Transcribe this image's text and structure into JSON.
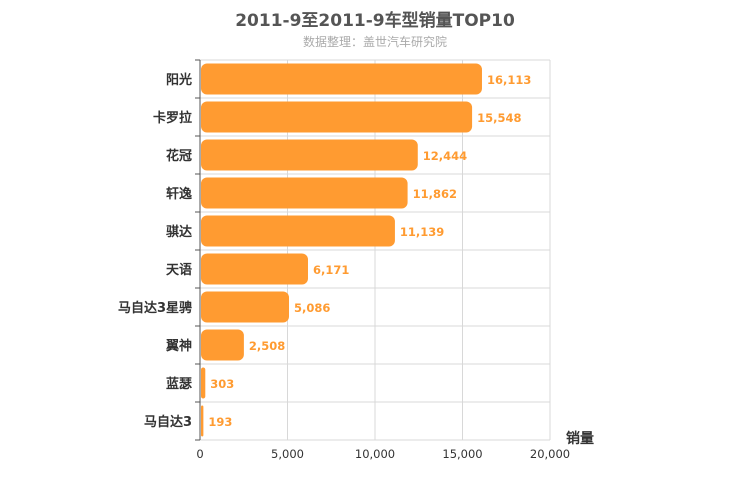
{
  "chart_data": {
    "type": "bar",
    "orientation": "horizontal",
    "title": "2011-9至2011-9车型销量TOP10",
    "subtitle": "数据整理：盖世汽车研究院",
    "xlabel": "销量",
    "ylabel": "",
    "categories": [
      "阳光",
      "卡罗拉",
      "花冠",
      "轩逸",
      "骐达",
      "天语",
      "马自达3星骋",
      "翼神",
      "蓝瑟",
      "马自达3"
    ],
    "values": [
      16113,
      15548,
      12444,
      11862,
      11139,
      6171,
      5086,
      2508,
      303,
      193
    ],
    "value_labels": [
      "16,113",
      "15,548",
      "12,444",
      "11,862",
      "11,139",
      "6,171",
      "5,086",
      "2,508",
      "303",
      "193"
    ],
    "xlim": [
      0,
      20000
    ],
    "xticks": [
      0,
      5000,
      10000,
      15000,
      20000
    ],
    "xtick_labels": [
      "0",
      "5,000",
      "10,000",
      "15,000",
      "20,000"
    ],
    "grid": true,
    "bar_color": "#ff9b31"
  }
}
